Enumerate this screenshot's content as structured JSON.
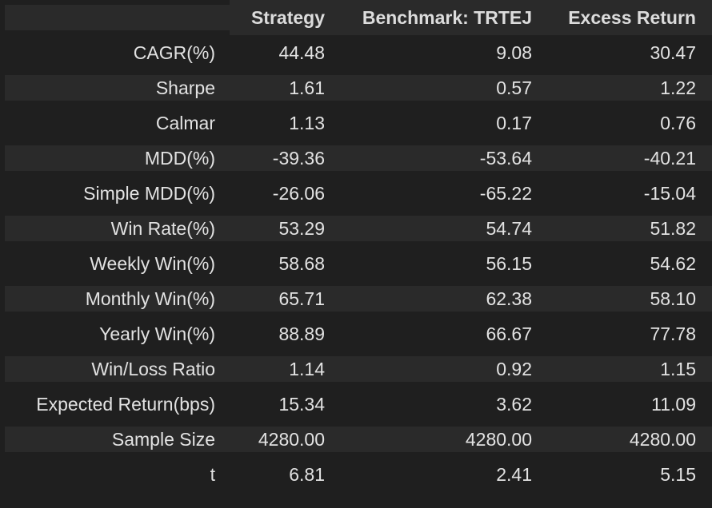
{
  "table": {
    "headers": {
      "corner": "",
      "strategy": "Strategy",
      "benchmark": "Benchmark: TRTEJ",
      "excess": "Excess Return"
    },
    "rows": [
      {
        "label": "CAGR(%)",
        "strategy": "44.48",
        "benchmark": "9.08",
        "excess": "30.47"
      },
      {
        "label": "Sharpe",
        "strategy": "1.61",
        "benchmark": "0.57",
        "excess": "1.22"
      },
      {
        "label": "Calmar",
        "strategy": "1.13",
        "benchmark": "0.17",
        "excess": "0.76"
      },
      {
        "label": "MDD(%)",
        "strategy": "-39.36",
        "benchmark": "-53.64",
        "excess": "-40.21"
      },
      {
        "label": "Simple MDD(%)",
        "strategy": "-26.06",
        "benchmark": "-65.22",
        "excess": "-15.04"
      },
      {
        "label": "Win Rate(%)",
        "strategy": "53.29",
        "benchmark": "54.74",
        "excess": "51.82"
      },
      {
        "label": "Weekly Win(%)",
        "strategy": "58.68",
        "benchmark": "56.15",
        "excess": "54.62"
      },
      {
        "label": "Monthly Win(%)",
        "strategy": "65.71",
        "benchmark": "62.38",
        "excess": "58.10"
      },
      {
        "label": "Yearly Win(%)",
        "strategy": "88.89",
        "benchmark": "66.67",
        "excess": "77.78"
      },
      {
        "label": "Win/Loss Ratio",
        "strategy": "1.14",
        "benchmark": "0.92",
        "excess": "1.15"
      },
      {
        "label": "Expected Return(bps)",
        "strategy": "15.34",
        "benchmark": "3.62",
        "excess": "11.09"
      },
      {
        "label": "Sample Size",
        "strategy": "4280.00",
        "benchmark": "4280.00",
        "excess": "4280.00"
      },
      {
        "label": "t",
        "strategy": "6.81",
        "benchmark": "2.41",
        "excess": "5.15"
      }
    ]
  },
  "colors": {
    "background": "#1f1f1f",
    "stripe": "#2a2a2a",
    "text": "#e2e2e2"
  }
}
